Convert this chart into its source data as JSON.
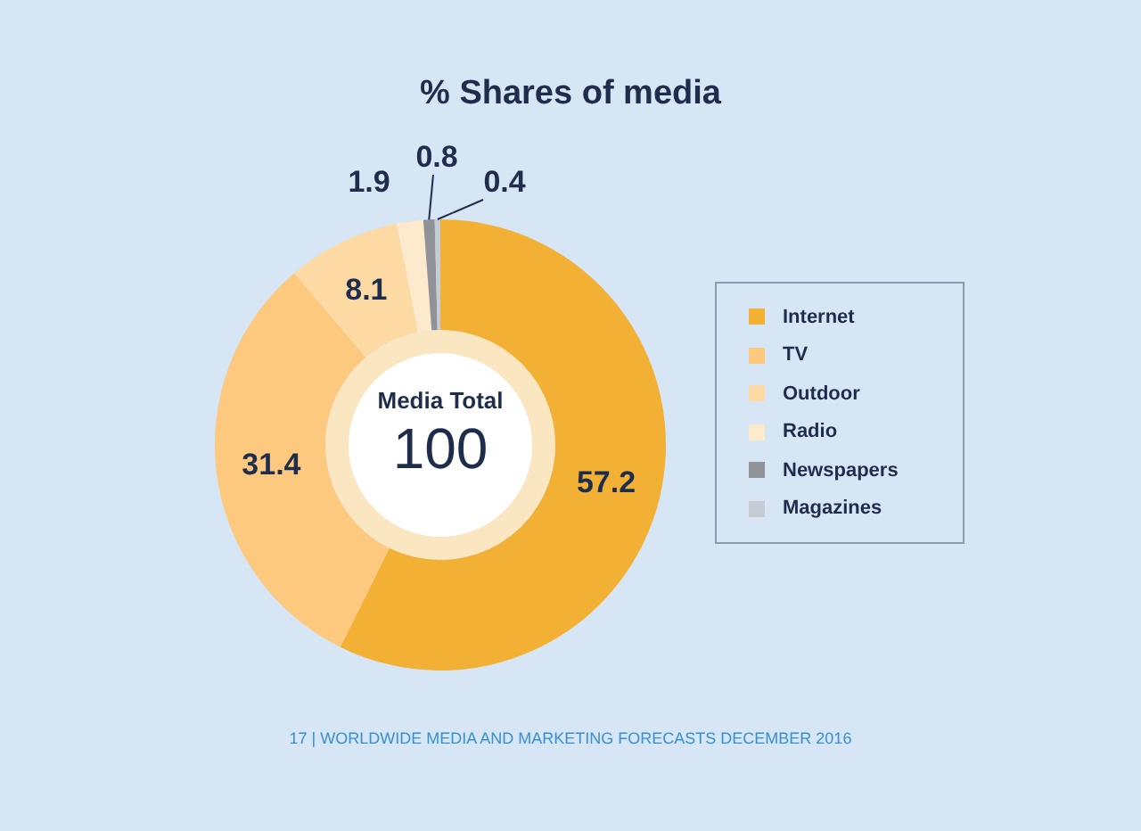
{
  "chart_data": {
    "type": "donut",
    "title": "% Shares of media",
    "categories": [
      "Internet",
      "TV",
      "Outdoor",
      "Radio",
      "Newspapers",
      "Magazines"
    ],
    "values": [
      57.2,
      31.4,
      8.1,
      1.9,
      0.8,
      0.4
    ],
    "colors": [
      "#f2b134",
      "#fcc97e",
      "#fdd9a3",
      "#fde9cc",
      "#8f9296",
      "#c5ccd3"
    ],
    "data_labels": true,
    "legend": "right",
    "annotations": [
      "Media Total",
      "100",
      "17 | WORLDWIDE MEDIA AND MARKETING FORECASTS DECEMBER 2016"
    ]
  }
}
